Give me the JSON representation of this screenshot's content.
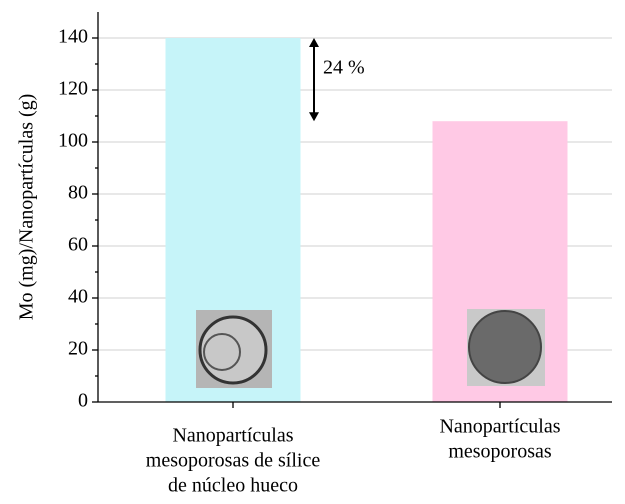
{
  "chart_data": {
    "type": "bar",
    "ylabel": "Mo (mg)/Nanopartículas (g)",
    "categories": [
      [
        "Nanopartículas",
        "mesoporosas de sílice",
        "de núcleo hueco"
      ],
      [
        "Nanopartículas",
        "mesoporosas"
      ]
    ],
    "values": [
      140,
      108
    ],
    "colors": [
      "#c6f4f9",
      "#ffc9e5"
    ],
    "ylim": [
      0,
      150
    ],
    "yticks": [
      0,
      20,
      40,
      60,
      80,
      100,
      120,
      140
    ],
    "grid": true,
    "annotation": "24 %"
  }
}
